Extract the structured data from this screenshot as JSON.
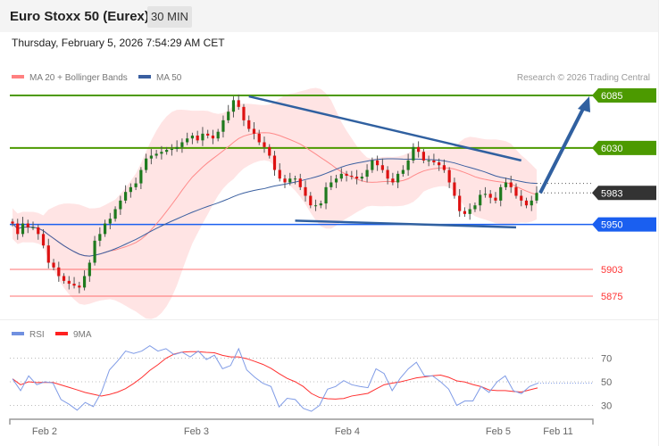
{
  "header": {
    "title": "Euro Stoxx 50 (Eurex)",
    "timeframe": "30 MIN",
    "datetime": "Thursday, February 5, 2026 7:54:29 AM CET"
  },
  "copyright": "Research © 2026 Trading Central",
  "chart_data": [
    {
      "type": "candlestick",
      "legend": [
        {
          "name": "MA 20 + Bollinger Bands",
          "color": "#ff8080"
        },
        {
          "name": "MA 50",
          "color": "#3a5fa0"
        }
      ],
      "ylim": [
        5840,
        6095
      ],
      "closes": [
        5951,
        5940,
        5951,
        5947,
        5947,
        5940,
        5928,
        5910,
        5905,
        5896,
        5891,
        5888,
        5886,
        5884,
        5896,
        5910,
        5933,
        5940,
        5951,
        5956,
        5966,
        5975,
        5984,
        5989,
        5993,
        6007,
        6019,
        6022,
        6024,
        6026,
        6028,
        6029,
        6031,
        6036,
        6040,
        6043,
        6038,
        6045,
        6043,
        6040,
        6047,
        6059,
        6068,
        6080,
        6073,
        6059,
        6050,
        6045,
        6036,
        6031,
        6022,
        6007,
        5998,
        5994,
        5998,
        5998,
        5989,
        5980,
        5970,
        5970,
        5972,
        5989,
        5994,
        5998,
        6003,
        6001,
        6000,
        5998,
        6000,
        6007,
        6017,
        6012,
        6007,
        5998,
        5994,
        6003,
        6007,
        6017,
        6031,
        6026,
        6017,
        6017,
        6015,
        6012,
        6007,
        5994,
        5980,
        5964,
        5961,
        5966,
        5970,
        5981,
        5982,
        5978,
        5975,
        5989,
        5994,
        5989,
        5980,
        5975,
        5970,
        5975,
        5983
      ],
      "levels": [
        {
          "value": 6085,
          "label": "6085",
          "style": "tag",
          "color": "#4c9a00"
        },
        {
          "value": 6030,
          "label": "6030",
          "style": "tag",
          "color": "#4c9a00"
        },
        {
          "value": 5983,
          "label": "5983",
          "style": "tag-dotted",
          "color": "#333333"
        },
        {
          "value": 5950,
          "label": "5950",
          "style": "tag",
          "color": "#1a5ff0"
        },
        {
          "value": 5903,
          "label": "5903",
          "style": "text",
          "color": "#ff3333"
        },
        {
          "value": 5875,
          "label": "5875",
          "style": "text",
          "color": "#ff3333"
        }
      ],
      "trendlines": [
        {
          "from": [
            46,
            6084
          ],
          "to": [
            99,
            6017
          ]
        },
        {
          "from": [
            55,
            5954
          ],
          "to": [
            98,
            5947
          ]
        }
      ],
      "arrow": {
        "from": [
          102,
          5983
        ],
        "to": [
          110,
          6085
        ]
      }
    },
    {
      "type": "line",
      "legend": [
        {
          "name": "RSI",
          "color": "#7090e0"
        },
        {
          "name": "9MA",
          "color": "#ff2020"
        }
      ],
      "ylim": [
        20,
        85
      ],
      "yticks": [
        70,
        50,
        30
      ],
      "rsi": [
        52.5,
        42.5,
        55,
        47.5,
        50,
        49,
        35,
        31,
        26,
        32.5,
        29,
        41,
        60,
        67.5,
        76,
        74,
        76,
        80.5,
        76,
        78,
        73,
        75,
        71,
        76,
        68.8,
        72.5,
        61,
        63.75,
        78,
        60,
        53.75,
        48.75,
        46,
        28.75,
        36,
        35,
        27.5,
        25,
        30,
        43.75,
        46,
        51,
        47.5,
        46,
        45,
        61,
        57,
        42.5,
        53,
        61,
        66.5,
        55,
        55,
        50,
        43.75,
        30,
        33.75,
        33.75,
        46,
        41,
        50,
        55,
        42.5,
        40,
        46,
        48.75
      ],
      "xticks": [
        "Feb 2",
        "Feb 3",
        "Feb 4",
        "Feb 5",
        "Feb 11"
      ]
    }
  ]
}
